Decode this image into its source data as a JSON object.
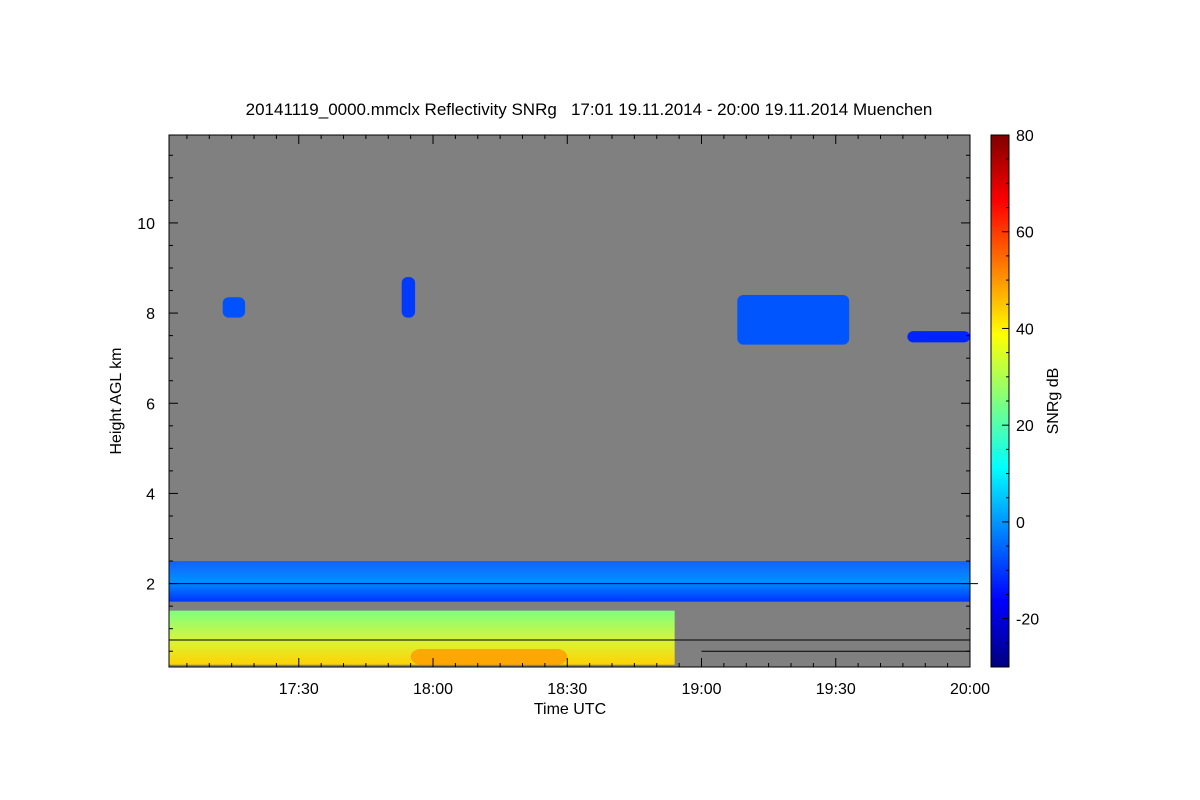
{
  "chart_data": {
    "type": "heatmap",
    "title": "20141119_0000.mmclx Reflectivity SNRg   17:01 19.11.2014 - 20:00 19.11.2014 Muenchen",
    "xlabel": "Time UTC",
    "ylabel": "Height AGL km",
    "colorbar_label": "SNRg dB",
    "x_range_utc": [
      "17:01",
      "20:00"
    ],
    "x_ticks": [
      "17:30",
      "18:00",
      "18:30",
      "19:00",
      "19:30",
      "20:00"
    ],
    "y_range_km": [
      0.15,
      11.95
    ],
    "y_ticks": [
      2,
      4,
      6,
      8,
      10
    ],
    "colorbar_range": [
      -30,
      80
    ],
    "colorbar_ticks": [
      -20,
      0,
      20,
      40,
      60,
      80
    ],
    "colormap": [
      "#00007f",
      "#0000ff",
      "#007fff",
      "#00ffff",
      "#7fff7f",
      "#ffff00",
      "#ff7f00",
      "#ff0000",
      "#7f0000"
    ],
    "background_color": "#808080",
    "reference_lines_km": [
      2.0,
      0.75,
      0.5
    ],
    "features": [
      {
        "name": "boundary-layer-echo",
        "start": "17:01",
        "end": "18:54",
        "bottom_km": 0.2,
        "top_km": 1.4,
        "snr_db": [
          15,
          50
        ]
      },
      {
        "name": "cloud-layer-2km",
        "start": "17:01",
        "end": "20:00",
        "bottom_km": 1.6,
        "top_km": 2.5,
        "snr_db": [
          -20,
          5
        ]
      },
      {
        "name": "cloud-8km-a",
        "start": "17:13",
        "end": "17:18",
        "bottom_km": 7.9,
        "top_km": 8.35,
        "snr_db": [
          -10,
          -5
        ]
      },
      {
        "name": "cloud-8km-b",
        "start": "17:53",
        "end": "17:56",
        "bottom_km": 7.9,
        "top_km": 8.8,
        "snr_db": [
          -15,
          -5
        ]
      },
      {
        "name": "cloud-8km-c",
        "start": "19:08",
        "end": "19:33",
        "bottom_km": 7.3,
        "top_km": 8.4,
        "snr_db": [
          -12,
          -2
        ]
      },
      {
        "name": "cloud-7.5km-d",
        "start": "19:46",
        "end": "20:00",
        "bottom_km": 7.35,
        "top_km": 7.6,
        "snr_db": [
          -15,
          -10
        ]
      }
    ]
  }
}
